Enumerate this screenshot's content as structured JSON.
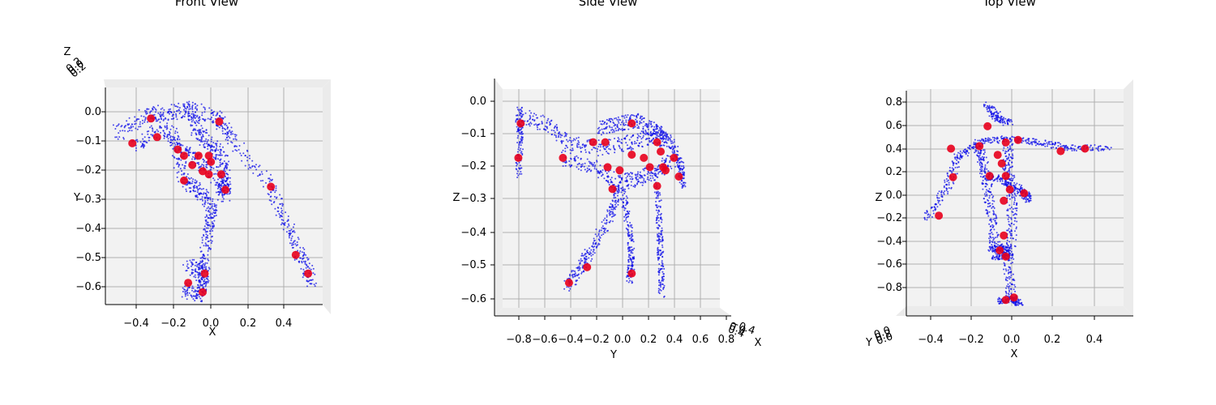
{
  "chart_data": [
    {
      "type": "scatter",
      "title": "Front View",
      "xlabel": "X",
      "ylabel": "Y",
      "zlabel": "Z",
      "x_ticks": [
        "−0.4",
        "−0.2",
        "0.0",
        "0.2",
        "0.4"
      ],
      "y_ticks": [
        "0.0",
        "−0.1",
        "−0.2",
        "−0.3",
        "−0.4",
        "−0.5",
        "−0.6"
      ],
      "z_tick_stack": "0.2\n0.0\n0.2",
      "xlim": [
        -0.5,
        0.55
      ],
      "ylim": [
        -0.65,
        0.05
      ],
      "body_color": "#1010e8",
      "joint_color": "#e8001c",
      "joints": [
        [
          -0.28,
          -0.05
        ],
        [
          -0.25,
          -0.11
        ],
        [
          -0.37,
          -0.13
        ],
        [
          -0.15,
          -0.15
        ],
        [
          -0.12,
          -0.17
        ],
        [
          -0.05,
          -0.17
        ],
        [
          0.0,
          -0.17
        ],
        [
          0.01,
          -0.19
        ],
        [
          -0.08,
          -0.2
        ],
        [
          -0.03,
          -0.22
        ],
        [
          0.0,
          -0.23
        ],
        [
          0.06,
          -0.23
        ],
        [
          -0.12,
          -0.25
        ],
        [
          0.08,
          -0.28
        ],
        [
          0.3,
          -0.27
        ],
        [
          0.05,
          -0.06
        ],
        [
          0.42,
          -0.49
        ],
        [
          0.48,
          -0.55
        ],
        [
          -0.02,
          -0.55
        ],
        [
          -0.1,
          -0.58
        ],
        [
          -0.03,
          -0.61
        ]
      ]
    },
    {
      "type": "scatter",
      "title": "Side View",
      "xlabel": "Y",
      "ylabel": "Z",
      "zlabel": "X",
      "x_ticks": [
        "−0.8",
        "−0.6",
        "−0.4",
        "−0.2",
        "0.0",
        "0.2",
        "0.4",
        "0.6",
        "0.8"
      ],
      "y_ticks": [
        "0.0",
        "−0.1",
        "−0.2",
        "−0.3",
        "−0.4",
        "−0.5",
        "−0.6"
      ],
      "z_tick_stack": "−0.4\n0.0\n0.4",
      "xlim": [
        -0.95,
        0.85
      ],
      "ylim": [
        -0.65,
        0.05
      ],
      "body_color": "#1010e8",
      "joint_color": "#e8001c",
      "joints": [
        [
          -0.8,
          -0.06
        ],
        [
          -0.82,
          -0.17
        ],
        [
          -0.45,
          -0.17
        ],
        [
          -0.1,
          -0.12
        ],
        [
          -0.2,
          -0.12
        ],
        [
          -0.08,
          -0.2
        ],
        [
          0.02,
          -0.21
        ],
        [
          -0.04,
          -0.27
        ],
        [
          0.12,
          -0.16
        ],
        [
          0.22,
          -0.17
        ],
        [
          0.27,
          -0.2
        ],
        [
          0.33,
          -0.12
        ],
        [
          0.36,
          -0.15
        ],
        [
          0.38,
          -0.2
        ],
        [
          0.4,
          -0.21
        ],
        [
          0.47,
          -0.17
        ],
        [
          0.51,
          -0.23
        ],
        [
          0.12,
          -0.06
        ],
        [
          0.33,
          -0.26
        ],
        [
          -0.25,
          -0.52
        ],
        [
          -0.4,
          -0.57
        ],
        [
          0.12,
          -0.54
        ]
      ]
    },
    {
      "type": "scatter",
      "title": "Top View",
      "xlabel": "X",
      "ylabel": "Z",
      "zlabel": "Y",
      "x_ticks": [
        "−0.4",
        "−0.2",
        "0.0",
        "0.2",
        "0.4"
      ],
      "y_ticks": [
        "0.8",
        "0.6",
        "0.4",
        "0.2",
        "0.0",
        "−0.2",
        "−0.4",
        "−0.6",
        "−0.8"
      ],
      "z_tick_stack": "0.0\n0.2\n0.0",
      "xlim": [
        -0.5,
        0.57
      ],
      "ylim": [
        -0.9,
        0.85
      ],
      "body_color": "#1010e8",
      "joint_color": "#e8001c",
      "joints": [
        [
          -0.1,
          0.55
        ],
        [
          -0.28,
          0.37
        ],
        [
          -0.14,
          0.39
        ],
        [
          -0.01,
          0.42
        ],
        [
          0.05,
          0.44
        ],
        [
          -0.27,
          0.14
        ],
        [
          -0.09,
          0.15
        ],
        [
          -0.05,
          0.32
        ],
        [
          -0.03,
          0.25
        ],
        [
          -0.01,
          0.15
        ],
        [
          0.01,
          0.04
        ],
        [
          -0.02,
          -0.05
        ],
        [
          0.08,
          0.01
        ],
        [
          0.26,
          0.35
        ],
        [
          0.38,
          0.37
        ],
        [
          -0.34,
          -0.17
        ],
        [
          -0.02,
          -0.33
        ],
        [
          -0.04,
          -0.45
        ],
        [
          -0.01,
          -0.5
        ],
        [
          0.03,
          -0.83
        ],
        [
          -0.01,
          -0.85
        ]
      ]
    }
  ]
}
